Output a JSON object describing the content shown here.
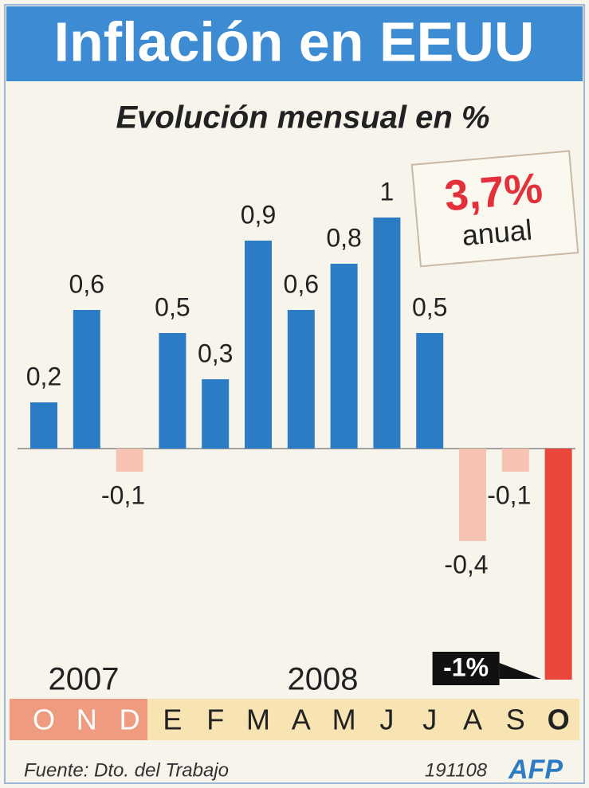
{
  "header": {
    "title": "Inflación en EEUU",
    "subtitle": "Evolución mensual en %"
  },
  "chart_data": {
    "type": "bar",
    "categories": [
      "O",
      "N",
      "D",
      "E",
      "F",
      "M",
      "A",
      "M",
      "J",
      "J",
      "A",
      "S",
      "O"
    ],
    "values": [
      0.2,
      0.6,
      -0.1,
      0.5,
      0.3,
      0.9,
      0.6,
      0.8,
      1,
      0.5,
      -0.4,
      -0.1,
      -1
    ],
    "value_labels": [
      "0,2",
      "0,6",
      "-0,1",
      "0,5",
      "0,3",
      "0,9",
      "0,6",
      "0,8",
      "1",
      "0,5",
      "-0,4",
      "-0,1",
      "-1%"
    ],
    "colors": [
      "#2b7cc4",
      "#2b7cc4",
      "#f6c3b2",
      "#2b7cc4",
      "#2b7cc4",
      "#2b7cc4",
      "#2b7cc4",
      "#2b7cc4",
      "#2b7cc4",
      "#2b7cc4",
      "#f6c3b2",
      "#f6c3b2",
      "#e9473b"
    ],
    "years": [
      "2007",
      "2008"
    ]
  },
  "annotation": {
    "value_label": "3,7%",
    "text": "anual"
  },
  "footer": {
    "source": "Fuente: Dto. del Trabajo",
    "date": "191108",
    "agency": "AFP"
  }
}
